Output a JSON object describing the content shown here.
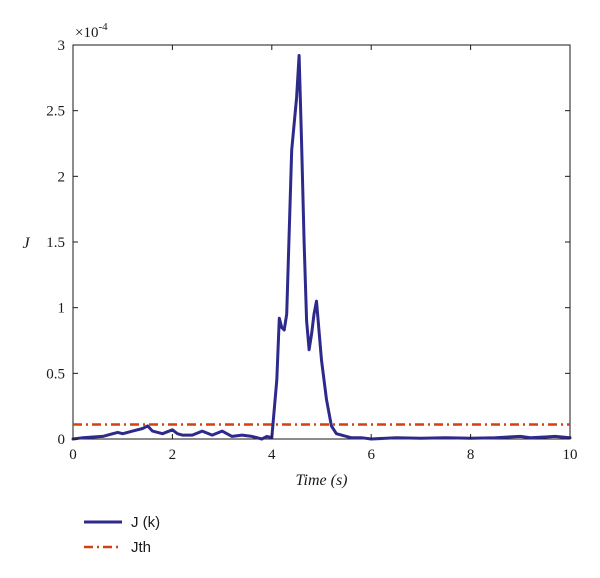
{
  "chart_data": {
    "type": "line",
    "title": "",
    "xlabel": "Time (s)",
    "ylabel": "J",
    "y_multiplier_label": "×10",
    "y_multiplier_exponent": "-4",
    "xlim": [
      0,
      10
    ],
    "ylim": [
      0,
      3
    ],
    "x_ticks": [
      0,
      2,
      4,
      6,
      8,
      10
    ],
    "x_tick_labels": [
      "0",
      "2",
      "4",
      "6",
      "8",
      "10"
    ],
    "y_ticks": [
      0,
      0.5,
      1,
      1.5,
      2,
      2.5,
      3
    ],
    "y_tick_labels": [
      "0",
      "0.5",
      "1",
      "1.5",
      "2",
      "2.5",
      "3"
    ],
    "legend_position": "bottom-left",
    "colors": {
      "jk": "#2e2a8c",
      "jth": "#d2410e"
    },
    "series": [
      {
        "name": "J (k)",
        "style": "solid",
        "x": [
          0,
          0.2,
          0.4,
          0.6,
          0.8,
          0.9,
          1.0,
          1.2,
          1.4,
          1.5,
          1.6,
          1.8,
          2.0,
          2.1,
          2.2,
          2.4,
          2.6,
          2.8,
          3.0,
          3.2,
          3.4,
          3.6,
          3.8,
          3.9,
          4.0,
          4.1,
          4.15,
          4.2,
          4.25,
          4.3,
          4.4,
          4.5,
          4.55,
          4.6,
          4.65,
          4.7,
          4.75,
          4.8,
          4.85,
          4.9,
          5.0,
          5.1,
          5.2,
          5.3,
          5.4,
          5.5,
          5.6,
          5.8,
          6.0,
          6.5,
          7.0,
          7.5,
          8.0,
          8.5,
          9.0,
          9.2,
          9.5,
          9.7,
          10.0
        ],
        "y": [
          0.0,
          0.01,
          0.015,
          0.02,
          0.04,
          0.05,
          0.04,
          0.06,
          0.08,
          0.1,
          0.06,
          0.04,
          0.07,
          0.04,
          0.03,
          0.03,
          0.06,
          0.03,
          0.06,
          0.02,
          0.03,
          0.02,
          0.0,
          0.02,
          0.01,
          0.45,
          0.92,
          0.85,
          0.83,
          0.95,
          2.2,
          2.6,
          2.92,
          2.25,
          1.5,
          0.9,
          0.68,
          0.8,
          0.95,
          1.05,
          0.6,
          0.3,
          0.1,
          0.04,
          0.03,
          0.02,
          0.01,
          0.01,
          0.0,
          0.01,
          0.005,
          0.01,
          0.005,
          0.01,
          0.02,
          0.01,
          0.015,
          0.02,
          0.01
        ]
      },
      {
        "name": "Jth",
        "style": "dash-dot",
        "x": [
          0,
          10
        ],
        "y": [
          0.11,
          0.11
        ]
      }
    ]
  }
}
